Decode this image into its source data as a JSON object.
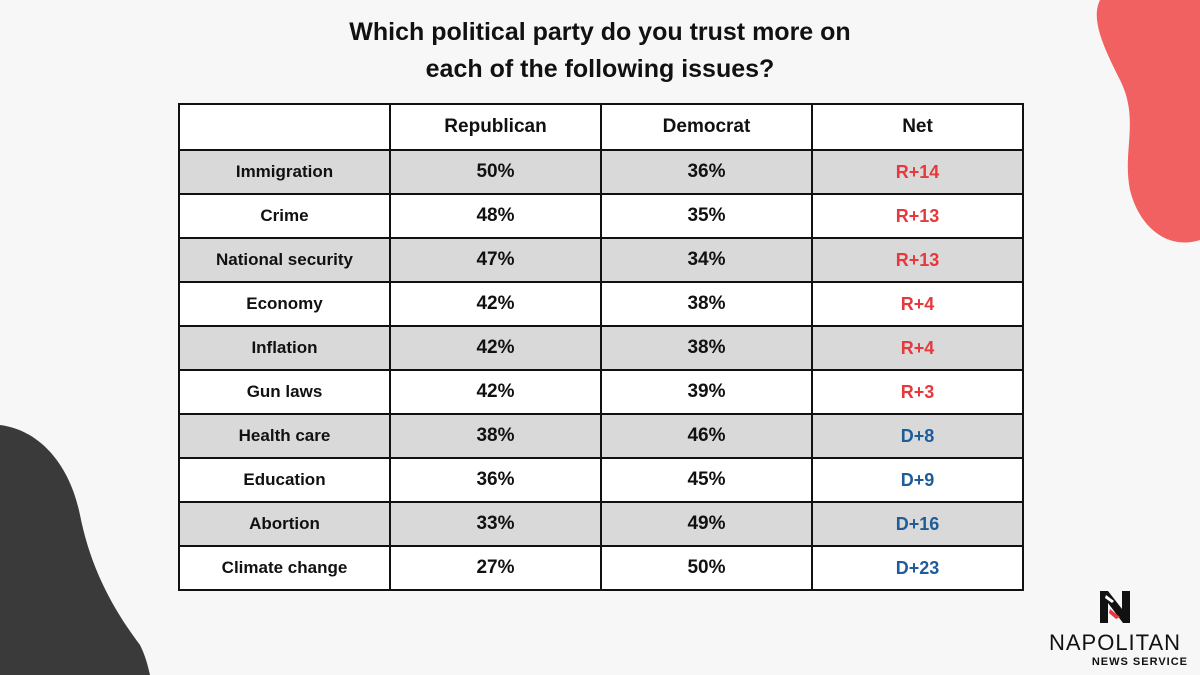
{
  "title_line1": "Which political party do you trust more on",
  "title_line2": "each of the following issues?",
  "colors": {
    "republican_net": "#e8383d",
    "democrat_net": "#1f5c9a",
    "shaded_row": "#d9d9d9",
    "blob_top_right": "#f26161",
    "blob_bottom_left": "#3a3a3a"
  },
  "logo": {
    "icon": "napolitan-n-icon",
    "name": "NAPOLITAN",
    "subtitle": "NEWS SERVICE"
  },
  "chart_data": {
    "type": "table",
    "title": "Which political party do you trust more on each of the following issues?",
    "columns": [
      "",
      "Republican",
      "Democrat",
      "Net"
    ],
    "rows": [
      {
        "issue": "Immigration",
        "republican": "50%",
        "democrat": "36%",
        "net": "R+14",
        "lean": "R"
      },
      {
        "issue": "Crime",
        "republican": "48%",
        "democrat": "35%",
        "net": "R+13",
        "lean": "R"
      },
      {
        "issue": "National security",
        "republican": "47%",
        "democrat": "34%",
        "net": "R+13",
        "lean": "R"
      },
      {
        "issue": "Economy",
        "republican": "42%",
        "democrat": "38%",
        "net": "R+4",
        "lean": "R"
      },
      {
        "issue": "Inflation",
        "republican": "42%",
        "democrat": "38%",
        "net": "R+4",
        "lean": "R"
      },
      {
        "issue": "Gun laws",
        "republican": "42%",
        "democrat": "39%",
        "net": "R+3",
        "lean": "R"
      },
      {
        "issue": "Health care",
        "republican": "38%",
        "democrat": "46%",
        "net": "D+8",
        "lean": "D"
      },
      {
        "issue": "Education",
        "republican": "36%",
        "democrat": "45%",
        "net": "D+9",
        "lean": "D"
      },
      {
        "issue": "Abortion",
        "republican": "33%",
        "democrat": "49%",
        "net": "D+16",
        "lean": "D"
      },
      {
        "issue": "Climate change",
        "republican": "27%",
        "democrat": "50%",
        "net": "D+23",
        "lean": "D"
      }
    ]
  }
}
